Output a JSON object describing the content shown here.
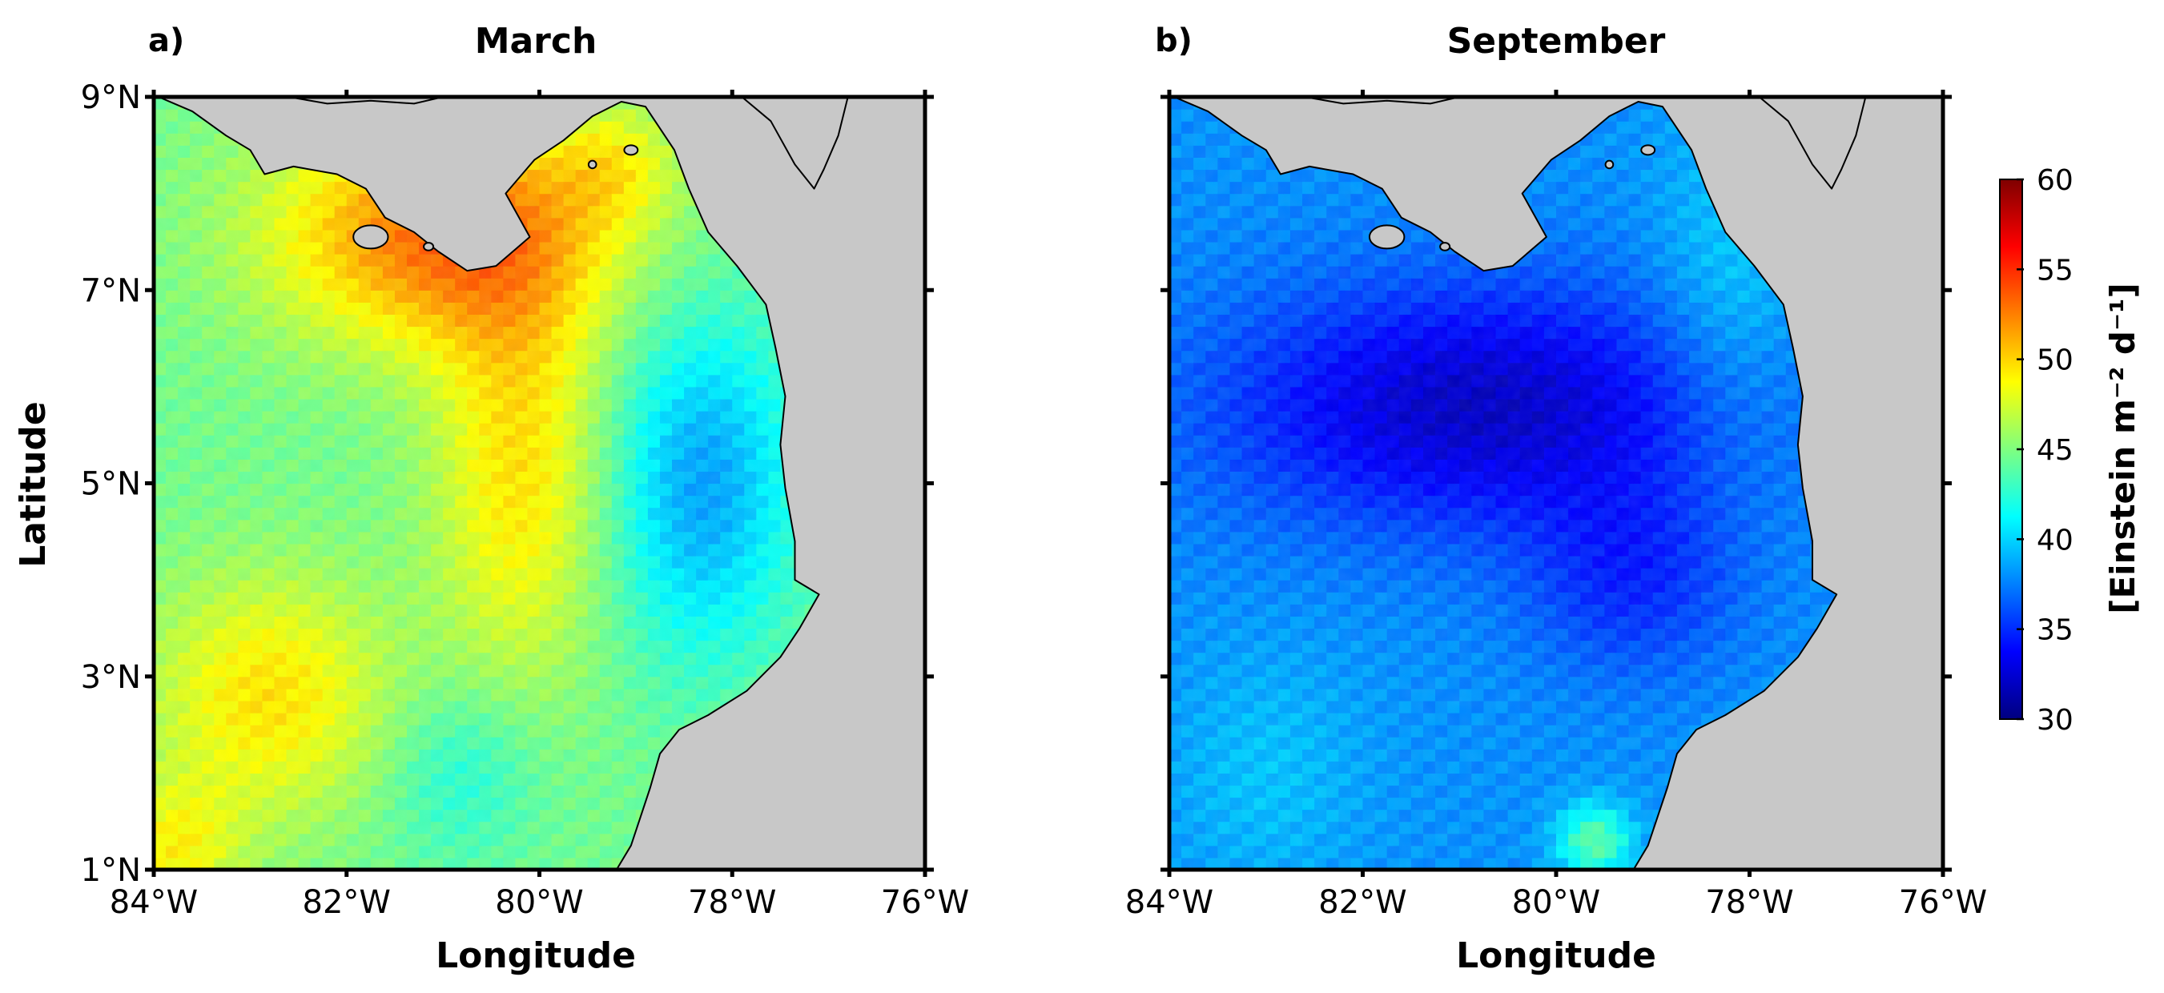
{
  "panels": [
    {
      "letter": "a)",
      "title": "March",
      "scheme": "march"
    },
    {
      "letter": "b)",
      "title": "September",
      "scheme": "september"
    }
  ],
  "axes": {
    "ylabel": "Latitude",
    "xlabel": "Longitude",
    "lat_ticks": [
      9,
      7,
      5,
      3,
      1
    ],
    "lat_tick_labels": [
      "9°N",
      "7°N",
      "5°N",
      "3°N",
      "1°N"
    ],
    "lon_ticks": [
      -84,
      -82,
      -80,
      -78,
      -76
    ],
    "lon_tick_labels": [
      "84°W",
      "82°W",
      "80°W",
      "78°W",
      "76°W"
    ],
    "lat_range": [
      1,
      9
    ],
    "lon_range": [
      -84,
      -76
    ]
  },
  "colorbar": {
    "label": "[Einstein m⁻² d⁻¹]",
    "min": 30,
    "max": 60,
    "ticks": [
      30,
      35,
      40,
      45,
      50,
      55,
      60
    ],
    "tick_labels": [
      "30",
      "35",
      "40",
      "45",
      "50",
      "55",
      "60"
    ],
    "colormap": "jet"
  },
  "colors": {
    "land": "#c8c8c8",
    "coast": "#000000",
    "frame": "#000000"
  }
}
